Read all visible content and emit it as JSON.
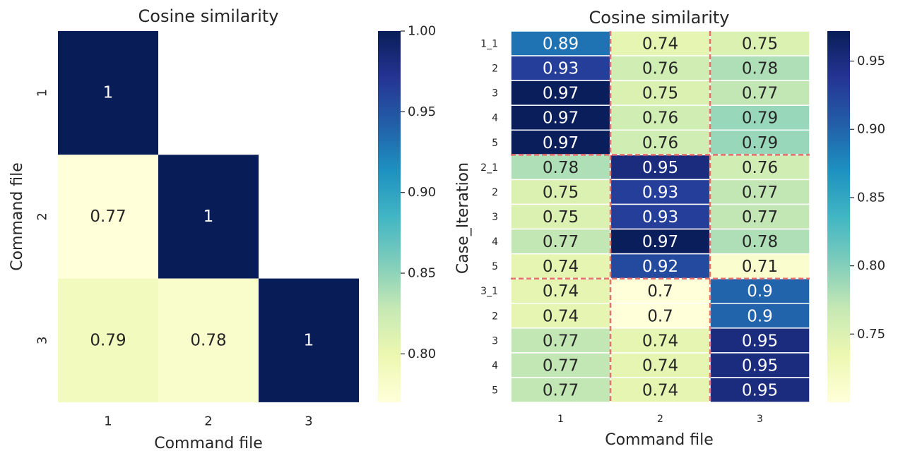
{
  "chart_data": [
    {
      "type": "heatmap",
      "title": "Cosine similarity",
      "xlabel": "Command file",
      "ylabel": "Command file",
      "x_tick_labels": [
        "1",
        "2",
        "3"
      ],
      "y_tick_labels": [
        "1",
        "2",
        "3"
      ],
      "mask": "upper-triangle",
      "cells": [
        {
          "row": 0,
          "col": 0,
          "value": 1,
          "label": "1"
        },
        {
          "row": 1,
          "col": 0,
          "value": 0.77,
          "label": "0.77"
        },
        {
          "row": 1,
          "col": 1,
          "value": 1,
          "label": "1"
        },
        {
          "row": 2,
          "col": 0,
          "value": 0.79,
          "label": "0.79"
        },
        {
          "row": 2,
          "col": 1,
          "value": 0.78,
          "label": "0.78"
        },
        {
          "row": 2,
          "col": 2,
          "value": 1,
          "label": "1"
        }
      ],
      "colormap": "YlGnBu",
      "vmin": 0.77,
      "vmax": 1.0,
      "colorbar_ticks": [
        {
          "value": 0.8,
          "label": "0.80"
        },
        {
          "value": 0.85,
          "label": "0.85"
        },
        {
          "value": 0.9,
          "label": "0.90"
        },
        {
          "value": 0.95,
          "label": "0.95"
        },
        {
          "value": 1.0,
          "label": "1.00"
        }
      ]
    },
    {
      "type": "heatmap",
      "title": "Cosine similarity",
      "xlabel": "Command file",
      "ylabel": "Case_Iteration",
      "x_tick_labels": [
        "1",
        "2",
        "3"
      ],
      "y_tick_labels": [
        "1_1",
        "2",
        "3",
        "4",
        "5",
        "2_1",
        "2",
        "3",
        "4",
        "5",
        "3_1",
        "2",
        "3",
        "4",
        "5"
      ],
      "values": [
        [
          0.89,
          0.74,
          0.75
        ],
        [
          0.93,
          0.76,
          0.78
        ],
        [
          0.97,
          0.75,
          0.77
        ],
        [
          0.97,
          0.76,
          0.79
        ],
        [
          0.97,
          0.76,
          0.79
        ],
        [
          0.78,
          0.95,
          0.76
        ],
        [
          0.75,
          0.93,
          0.77
        ],
        [
          0.75,
          0.93,
          0.77
        ],
        [
          0.77,
          0.97,
          0.78
        ],
        [
          0.74,
          0.92,
          0.71
        ],
        [
          0.74,
          0.7,
          0.9
        ],
        [
          0.74,
          0.7,
          0.9
        ],
        [
          0.77,
          0.74,
          0.95
        ],
        [
          0.77,
          0.74,
          0.95
        ],
        [
          0.77,
          0.74,
          0.95
        ]
      ],
      "labels": [
        [
          "0.89",
          "0.74",
          "0.75"
        ],
        [
          "0.93",
          "0.76",
          "0.78"
        ],
        [
          "0.97",
          "0.75",
          "0.77"
        ],
        [
          "0.97",
          "0.76",
          "0.79"
        ],
        [
          "0.97",
          "0.76",
          "0.79"
        ],
        [
          "0.78",
          "0.95",
          "0.76"
        ],
        [
          "0.75",
          "0.93",
          "0.77"
        ],
        [
          "0.75",
          "0.93",
          "0.77"
        ],
        [
          "0.77",
          "0.97",
          "0.78"
        ],
        [
          "0.74",
          "0.92",
          "0.71"
        ],
        [
          "0.74",
          "0.7",
          "0.9"
        ],
        [
          "0.74",
          "0.7",
          "0.9"
        ],
        [
          "0.77",
          "0.74",
          "0.95"
        ],
        [
          "0.77",
          "0.74",
          "0.95"
        ],
        [
          "0.77",
          "0.74",
          "0.95"
        ]
      ],
      "group_separator_rows": [
        5,
        10
      ],
      "group_separator_cols": [
        1,
        2
      ],
      "separator_color": "#e8706a",
      "colormap": "YlGnBu",
      "vmin": 0.7,
      "vmax": 0.972,
      "colorbar_ticks": [
        {
          "value": 0.75,
          "label": "0.75"
        },
        {
          "value": 0.8,
          "label": "0.80"
        },
        {
          "value": 0.85,
          "label": "0.85"
        },
        {
          "value": 0.9,
          "label": "0.90"
        },
        {
          "value": 0.95,
          "label": "0.95"
        }
      ]
    }
  ]
}
